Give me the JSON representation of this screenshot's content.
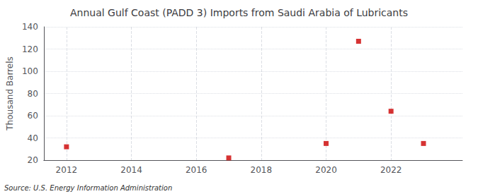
{
  "chart_data": {
    "type": "scatter",
    "title": "Annual Gulf Coast (PADD 3) Imports from Saudi Arabia of Lubricants",
    "ylabel": "Thousand Barrels",
    "annotation": "Source: U.S. Energy Information Administration",
    "x": [
      2012,
      2017,
      2020,
      2021,
      2022,
      2023
    ],
    "values": [
      32,
      22,
      35,
      127,
      64,
      35
    ],
    "color": "#cc0000",
    "marker": "square",
    "xlim": [
      2011.3,
      2024.2
    ],
    "ylim": [
      20,
      140
    ],
    "xticks": [
      2012,
      2014,
      2016,
      2018,
      2020,
      2022
    ],
    "yticks": [
      20,
      40,
      60,
      80,
      100,
      120,
      140
    ],
    "grid": true
  }
}
